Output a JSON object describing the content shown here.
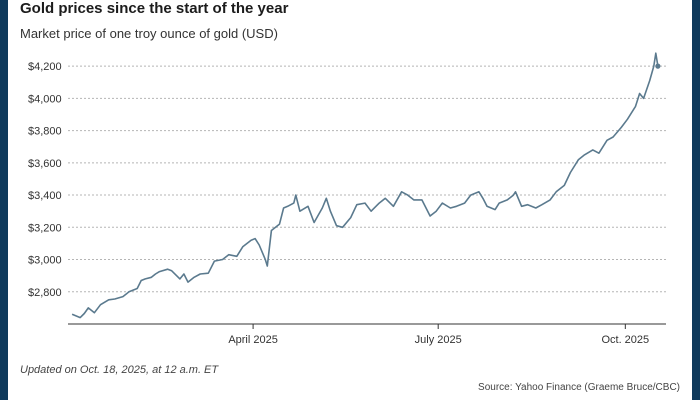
{
  "chart_data": {
    "type": "line",
    "title": "Gold prices since the start of the year",
    "subtitle": "Market price of one troy ounce of gold (USD)",
    "xlabel": "",
    "ylabel": "",
    "yticks": [
      2800,
      3000,
      3200,
      3400,
      3600,
      3800,
      4000,
      4200
    ],
    "ytick_labels": [
      "$2,800",
      "$3,000",
      "$3,200",
      "$3,400",
      "$3,600",
      "$3,800",
      "$4,000",
      "$4,200"
    ],
    "xticks": [
      {
        "date": "2025-04-01",
        "label": "April 2025"
      },
      {
        "date": "2025-07-01",
        "label": "July 2025"
      },
      {
        "date": "2025-10-01",
        "label": "Oct. 2025"
      }
    ],
    "xlim": [
      "2024-12-31",
      "2025-10-21"
    ],
    "ylim": [
      2600,
      4300
    ],
    "grid": "horizontal dotted",
    "line_color": "#5b7a8e",
    "series": [
      {
        "x": [
          "2025-01-02",
          "2025-01-06",
          "2025-01-08",
          "2025-01-10",
          "2025-01-13",
          "2025-01-16",
          "2025-01-20",
          "2025-01-23",
          "2025-01-27",
          "2025-01-30",
          "2025-02-03",
          "2025-02-05",
          "2025-02-07",
          "2025-02-10",
          "2025-02-12",
          "2025-02-14",
          "2025-02-18",
          "2025-02-20",
          "2025-02-24",
          "2025-02-26",
          "2025-02-28",
          "2025-03-03",
          "2025-03-06",
          "2025-03-10",
          "2025-03-13",
          "2025-03-17",
          "2025-03-20",
          "2025-03-24",
          "2025-03-27",
          "2025-03-31",
          "2025-04-02",
          "2025-04-04",
          "2025-04-07",
          "2025-04-08",
          "2025-04-10",
          "2025-04-14",
          "2025-04-16",
          "2025-04-18",
          "2025-04-21",
          "2025-04-22",
          "2025-04-24",
          "2025-04-28",
          "2025-05-01",
          "2025-05-05",
          "2025-05-07",
          "2025-05-09",
          "2025-05-12",
          "2025-05-15",
          "2025-05-19",
          "2025-05-22",
          "2025-05-26",
          "2025-05-29",
          "2025-06-02",
          "2025-06-05",
          "2025-06-09",
          "2025-06-13",
          "2025-06-16",
          "2025-06-19",
          "2025-06-23",
          "2025-06-27",
          "2025-06-30",
          "2025-07-03",
          "2025-07-07",
          "2025-07-10",
          "2025-07-14",
          "2025-07-17",
          "2025-07-21",
          "2025-07-23",
          "2025-07-25",
          "2025-07-29",
          "2025-07-31",
          "2025-08-04",
          "2025-08-07",
          "2025-08-08",
          "2025-08-11",
          "2025-08-14",
          "2025-08-18",
          "2025-08-21",
          "2025-08-25",
          "2025-08-28",
          "2025-09-01",
          "2025-09-04",
          "2025-09-08",
          "2025-09-11",
          "2025-09-15",
          "2025-09-18",
          "2025-09-22",
          "2025-09-25",
          "2025-09-29",
          "2025-10-02",
          "2025-10-06",
          "2025-10-08",
          "2025-10-10",
          "2025-10-13",
          "2025-10-15",
          "2025-10-16",
          "2025-10-17"
        ],
        "y": [
          2660,
          2640,
          2665,
          2700,
          2670,
          2720,
          2750,
          2755,
          2770,
          2800,
          2820,
          2870,
          2880,
          2890,
          2910,
          2925,
          2940,
          2930,
          2880,
          2910,
          2860,
          2890,
          2910,
          2915,
          2990,
          3000,
          3030,
          3020,
          3080,
          3120,
          3130,
          3090,
          3000,
          2960,
          3180,
          3220,
          3320,
          3330,
          3350,
          3400,
          3300,
          3330,
          3230,
          3320,
          3380,
          3300,
          3210,
          3200,
          3260,
          3340,
          3350,
          3300,
          3350,
          3380,
          3330,
          3420,
          3400,
          3370,
          3370,
          3270,
          3300,
          3350,
          3320,
          3330,
          3350,
          3400,
          3420,
          3380,
          3330,
          3310,
          3350,
          3370,
          3400,
          3420,
          3330,
          3340,
          3320,
          3340,
          3370,
          3420,
          3460,
          3540,
          3620,
          3650,
          3680,
          3660,
          3740,
          3760,
          3820,
          3870,
          3950,
          4030,
          4000,
          4110,
          4200,
          4280,
          4200
        ]
      }
    ]
  },
  "footnote": "Updated on Oct. 18, 2025, at 12 a.m. ET",
  "source": "Source: Yahoo Finance (Graeme Bruce/CBC)"
}
